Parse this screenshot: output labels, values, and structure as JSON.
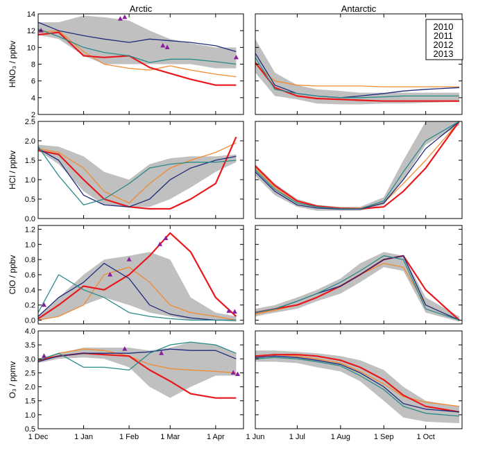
{
  "figure": {
    "column_titles": [
      "Arctic",
      "Antarctic"
    ],
    "legend": [
      {
        "label": "2010",
        "color": "#f28a2e"
      },
      {
        "label": "2011",
        "color": "#e8181c"
      },
      {
        "label": "2012",
        "color": "#1f2a7c"
      },
      {
        "label": "2013",
        "color": "#2a8a88"
      }
    ],
    "envelope_color": "#c0c0c0",
    "marker_color": "#8b1c9c",
    "arctic_xticks": [
      "1 Dec",
      "1 Jan",
      "1 Feb",
      "1 Mar",
      "1 Apr"
    ],
    "antarctic_xticks": [
      "1 Jun",
      "1 Jul",
      "1 Aug",
      "1 Sep",
      "1 Oct"
    ]
  },
  "chart_data": [
    {
      "type": "line",
      "region": "Arctic",
      "ylabel": "HNO₃ / ppbv",
      "ylim": [
        2,
        14
      ],
      "yticks": [
        "2",
        "4",
        "6",
        "8",
        "10",
        "12",
        "14"
      ],
      "x": [
        "1 Dec",
        "15 Dec",
        "1 Jan",
        "15 Jan",
        "1 Feb",
        "15 Feb",
        "1 Mar",
        "15 Mar",
        "1 Apr",
        "15 Apr"
      ],
      "envelope": {
        "low": [
          11.5,
          11.0,
          9.0,
          8.0,
          8.0,
          8.0,
          8.0,
          8.0,
          7.5,
          7.5
        ],
        "high": [
          13.0,
          13.0,
          13.8,
          13.6,
          13.2,
          12.0,
          11.0,
          10.5,
          10.0,
          10.0
        ]
      },
      "series": [
        {
          "name": "2010",
          "values": [
            11.8,
            12.0,
            9.5,
            8.0,
            7.5,
            7.3,
            7.8,
            7.3,
            6.8,
            6.5
          ]
        },
        {
          "name": "2011",
          "values": [
            11.5,
            11.8,
            9.0,
            8.8,
            9.0,
            7.6,
            6.9,
            6.2,
            5.5,
            5.5
          ]
        },
        {
          "name": "2012",
          "values": [
            13.0,
            12.0,
            11.4,
            11.0,
            10.6,
            11.0,
            10.8,
            10.6,
            10.2,
            9.5
          ]
        },
        {
          "name": "2013",
          "values": [
            12.2,
            11.3,
            10.0,
            9.4,
            9.0,
            8.2,
            8.6,
            8.6,
            8.3,
            8.0
          ]
        }
      ],
      "markers": [
        {
          "x": "3 Dec",
          "y": 12.0
        },
        {
          "x": "26 Jan",
          "y": 13.4
        },
        {
          "x": "29 Jan",
          "y": 13.6
        },
        {
          "x": "24 Feb",
          "y": 10.2
        },
        {
          "x": "27 Feb",
          "y": 10.0
        },
        {
          "x": "15 Apr",
          "y": 8.8
        }
      ]
    },
    {
      "type": "line",
      "region": "Antarctic",
      "ylabel": "",
      "ylim": [
        2,
        14
      ],
      "x": [
        "1 Jun",
        "15 Jun",
        "1 Jul",
        "15 Jul",
        "1 Aug",
        "15 Aug",
        "1 Sep",
        "15 Sep",
        "1 Oct",
        "25 Oct"
      ],
      "envelope": {
        "low": [
          7.0,
          4.2,
          3.8,
          3.3,
          3.2,
          3.2,
          3.3,
          3.3,
          3.4,
          3.5
        ],
        "high": [
          11.0,
          7.0,
          5.5,
          5.0,
          4.8,
          4.6,
          4.6,
          4.6,
          4.6,
          4.6
        ]
      },
      "series": [
        {
          "name": "2010",
          "values": [
            8.0,
            6.0,
            5.5,
            5.4,
            5.4,
            5.4,
            5.3,
            5.3,
            5.3,
            5.3
          ]
        },
        {
          "name": "2011",
          "values": [
            8.2,
            5.2,
            4.2,
            3.9,
            3.8,
            3.7,
            3.6,
            3.6,
            3.6,
            3.6
          ]
        },
        {
          "name": "2012",
          "values": [
            9.3,
            5.5,
            4.5,
            4.2,
            4.0,
            4.2,
            4.5,
            4.8,
            5.0,
            5.2
          ]
        },
        {
          "name": "2013",
          "values": [
            8.8,
            5.0,
            4.5,
            4.2,
            4.0,
            4.0,
            4.1,
            4.2,
            4.2,
            4.2
          ]
        }
      ]
    },
    {
      "type": "line",
      "region": "Arctic",
      "ylabel": "HCl / ppbv",
      "ylim": [
        0,
        2.5
      ],
      "yticks": [
        "0.0",
        "0.5",
        "1.0",
        "1.5",
        "2.0",
        "2.5"
      ],
      "x": [
        "1 Dec",
        "15 Dec",
        "1 Jan",
        "15 Jan",
        "1 Feb",
        "15 Feb",
        "1 Mar",
        "15 Mar",
        "1 Apr",
        "15 Apr"
      ],
      "envelope": {
        "low": [
          1.75,
          1.4,
          0.7,
          0.35,
          0.3,
          0.3,
          0.5,
          0.8,
          1.2,
          1.45
        ],
        "high": [
          1.9,
          1.85,
          1.6,
          1.2,
          1.0,
          1.4,
          1.55,
          1.6,
          1.6,
          1.65
        ]
      },
      "series": [
        {
          "name": "2010",
          "values": [
            1.8,
            1.7,
            1.3,
            0.7,
            0.4,
            0.9,
            1.3,
            1.5,
            1.7,
            1.95
          ]
        },
        {
          "name": "2011",
          "values": [
            1.75,
            1.65,
            1.0,
            0.5,
            0.3,
            0.25,
            0.25,
            0.5,
            0.9,
            2.1
          ]
        },
        {
          "name": "2012",
          "values": [
            1.8,
            1.5,
            0.6,
            0.35,
            0.3,
            0.5,
            1.0,
            1.3,
            1.5,
            1.6
          ]
        },
        {
          "name": "2013",
          "values": [
            1.85,
            1.1,
            0.35,
            0.5,
            0.9,
            1.3,
            1.4,
            1.45,
            1.45,
            1.5
          ]
        }
      ]
    },
    {
      "type": "line",
      "region": "Antarctic",
      "ylabel": "",
      "ylim": [
        0,
        2.5
      ],
      "x": [
        "1 Jun",
        "15 Jun",
        "1 Jul",
        "15 Jul",
        "1 Aug",
        "15 Aug",
        "1 Sep",
        "15 Sep",
        "1 Oct",
        "25 Oct"
      ],
      "envelope": {
        "low": [
          1.1,
          0.6,
          0.3,
          0.2,
          0.2,
          0.2,
          0.35,
          1.0,
          1.9,
          2.4
        ],
        "high": [
          1.4,
          0.9,
          0.5,
          0.35,
          0.3,
          0.3,
          0.55,
          1.5,
          2.5,
          2.5
        ]
      },
      "series": [
        {
          "name": "2010",
          "values": [
            1.3,
            0.8,
            0.4,
            0.3,
            0.27,
            0.27,
            0.4,
            0.9,
            1.5,
            2.5
          ]
        },
        {
          "name": "2011",
          "values": [
            1.35,
            0.85,
            0.45,
            0.32,
            0.26,
            0.25,
            0.3,
            0.7,
            1.3,
            2.5
          ]
        },
        {
          "name": "2012",
          "values": [
            1.2,
            0.7,
            0.35,
            0.27,
            0.24,
            0.24,
            0.4,
            1.0,
            1.8,
            2.5
          ]
        },
        {
          "name": "2013",
          "values": [
            1.25,
            0.75,
            0.4,
            0.3,
            0.25,
            0.25,
            0.45,
            1.2,
            2.0,
            2.5
          ]
        }
      ]
    },
    {
      "type": "line",
      "region": "Arctic",
      "ylabel": "ClO / ppbv",
      "ylim": [
        -0.05,
        1.25
      ],
      "yticks": [
        "0.0",
        "0.2",
        "0.4",
        "0.6",
        "0.8",
        "1.0",
        "1.2"
      ],
      "x": [
        "1 Dec",
        "15 Dec",
        "1 Jan",
        "15 Jan",
        "1 Feb",
        "15 Feb",
        "1 Mar",
        "15 Mar",
        "1 Apr",
        "15 Apr"
      ],
      "envelope": {
        "low": [
          0.0,
          0.05,
          0.2,
          0.3,
          0.2,
          0.1,
          0.05,
          0.0,
          0.0,
          -0.02
        ],
        "high": [
          0.05,
          0.3,
          0.6,
          0.8,
          0.85,
          0.9,
          0.8,
          0.3,
          0.1,
          0.05
        ]
      },
      "series": [
        {
          "name": "2010",
          "values": [
            0.0,
            0.05,
            0.2,
            0.6,
            0.7,
            0.5,
            0.2,
            0.1,
            0.05,
            0.0
          ]
        },
        {
          "name": "2011",
          "values": [
            0.02,
            0.2,
            0.45,
            0.4,
            0.6,
            0.85,
            1.15,
            0.9,
            0.3,
            0.05
          ]
        },
        {
          "name": "2012",
          "values": [
            0.05,
            0.3,
            0.5,
            0.75,
            0.55,
            0.2,
            0.08,
            0.03,
            0.0,
            0.0
          ]
        },
        {
          "name": "2013",
          "values": [
            0.1,
            0.6,
            0.4,
            0.3,
            0.1,
            0.05,
            0.02,
            0.0,
            0.0,
            0.0
          ]
        }
      ],
      "markers": [
        {
          "x": "5 Dec",
          "y": 0.2
        },
        {
          "x": "19 Jan",
          "y": 0.6
        },
        {
          "x": "1 Feb",
          "y": 0.8
        },
        {
          "x": "22 Feb",
          "y": 1.0
        },
        {
          "x": "26 Feb",
          "y": 1.08
        },
        {
          "x": "10 Apr",
          "y": 0.12
        },
        {
          "x": "14 Apr",
          "y": 0.11
        }
      ]
    },
    {
      "type": "line",
      "region": "Antarctic",
      "ylabel": "",
      "ylim": [
        -0.05,
        1.25
      ],
      "x": [
        "1 Jun",
        "15 Jun",
        "1 Jul",
        "15 Jul",
        "1 Aug",
        "15 Aug",
        "1 Sep",
        "15 Sep",
        "1 Oct",
        "25 Oct"
      ],
      "envelope": {
        "low": [
          0.05,
          0.1,
          0.15,
          0.25,
          0.35,
          0.5,
          0.7,
          0.65,
          0.1,
          -0.02
        ],
        "high": [
          0.15,
          0.2,
          0.3,
          0.4,
          0.55,
          0.75,
          0.9,
          0.85,
          0.3,
          0.05
        ]
      },
      "series": [
        {
          "name": "2010",
          "values": [
            0.08,
            0.13,
            0.2,
            0.3,
            0.45,
            0.6,
            0.75,
            0.7,
            0.2,
            0.0
          ]
        },
        {
          "name": "2011",
          "values": [
            0.1,
            0.15,
            0.2,
            0.3,
            0.45,
            0.6,
            0.8,
            0.85,
            0.4,
            0.0
          ]
        },
        {
          "name": "2012",
          "values": [
            0.1,
            0.15,
            0.25,
            0.35,
            0.45,
            0.6,
            0.8,
            0.85,
            0.2,
            0.0
          ]
        },
        {
          "name": "2013",
          "values": [
            0.1,
            0.15,
            0.25,
            0.35,
            0.5,
            0.65,
            0.85,
            0.8,
            0.15,
            0.0
          ]
        }
      ]
    },
    {
      "type": "line",
      "region": "Arctic",
      "ylabel": "O₃ / ppmv",
      "ylim": [
        0.5,
        4.0
      ],
      "yticks": [
        "0.5",
        "1.0",
        "1.5",
        "2.0",
        "2.5",
        "3.0",
        "3.5",
        "4.0"
      ],
      "x": [
        "1 Dec",
        "15 Dec",
        "1 Jan",
        "15 Jan",
        "1 Feb",
        "15 Feb",
        "1 Mar",
        "15 Mar",
        "1 Apr",
        "15 Apr"
      ],
      "envelope": {
        "low": [
          2.85,
          3.0,
          3.05,
          3.0,
          2.7,
          2.0,
          1.6,
          2.0,
          2.4,
          2.4
        ],
        "high": [
          3.0,
          3.2,
          3.4,
          3.4,
          3.4,
          3.3,
          3.4,
          3.6,
          3.5,
          3.2
        ]
      },
      "series": [
        {
          "name": "2010",
          "values": [
            2.9,
            3.2,
            3.35,
            3.3,
            3.1,
            2.8,
            2.65,
            2.6,
            2.55,
            2.5
          ]
        },
        {
          "name": "2011",
          "values": [
            2.95,
            3.1,
            3.2,
            3.15,
            3.1,
            2.6,
            2.2,
            1.75,
            1.6,
            1.6
          ]
        },
        {
          "name": "2012",
          "values": [
            2.9,
            3.1,
            3.2,
            3.2,
            3.2,
            3.25,
            3.35,
            3.3,
            3.3,
            3.0
          ]
        },
        {
          "name": "2013",
          "values": [
            2.95,
            3.2,
            2.7,
            2.7,
            2.6,
            3.2,
            3.5,
            3.6,
            3.5,
            3.2
          ]
        }
      ],
      "markers": [
        {
          "x": "5 Dec",
          "y": 3.1
        },
        {
          "x": "29 Jan",
          "y": 3.35
        },
        {
          "x": "23 Feb",
          "y": 3.2
        },
        {
          "x": "13 Apr",
          "y": 2.5
        },
        {
          "x": "16 Apr",
          "y": 2.45
        }
      ]
    },
    {
      "type": "line",
      "region": "Antarctic",
      "ylabel": "",
      "ylim": [
        0.5,
        4.0
      ],
      "x": [
        "1 Jun",
        "15 Jun",
        "1 Jul",
        "15 Jul",
        "1 Aug",
        "15 Aug",
        "1 Sep",
        "15 Sep",
        "1 Oct",
        "25 Oct"
      ],
      "envelope": {
        "low": [
          2.9,
          2.9,
          2.85,
          2.7,
          2.55,
          2.2,
          1.5,
          0.9,
          0.75,
          0.7
        ],
        "high": [
          3.3,
          3.3,
          3.25,
          3.2,
          3.1,
          2.95,
          2.6,
          2.0,
          1.5,
          1.3
        ]
      },
      "series": [
        {
          "name": "2010",
          "values": [
            3.1,
            3.15,
            3.1,
            3.0,
            2.85,
            2.55,
            2.1,
            1.65,
            1.45,
            1.3
          ]
        },
        {
          "name": "2011",
          "values": [
            3.1,
            3.15,
            3.15,
            3.1,
            2.95,
            2.7,
            2.25,
            1.7,
            1.3,
            1.1
          ]
        },
        {
          "name": "2012",
          "values": [
            3.05,
            3.1,
            3.05,
            2.95,
            2.8,
            2.5,
            2.0,
            1.4,
            1.2,
            1.1
          ]
        },
        {
          "name": "2013",
          "values": [
            3.0,
            3.05,
            3.0,
            2.9,
            2.75,
            2.4,
            1.9,
            1.3,
            1.05,
            0.95
          ]
        }
      ]
    }
  ]
}
